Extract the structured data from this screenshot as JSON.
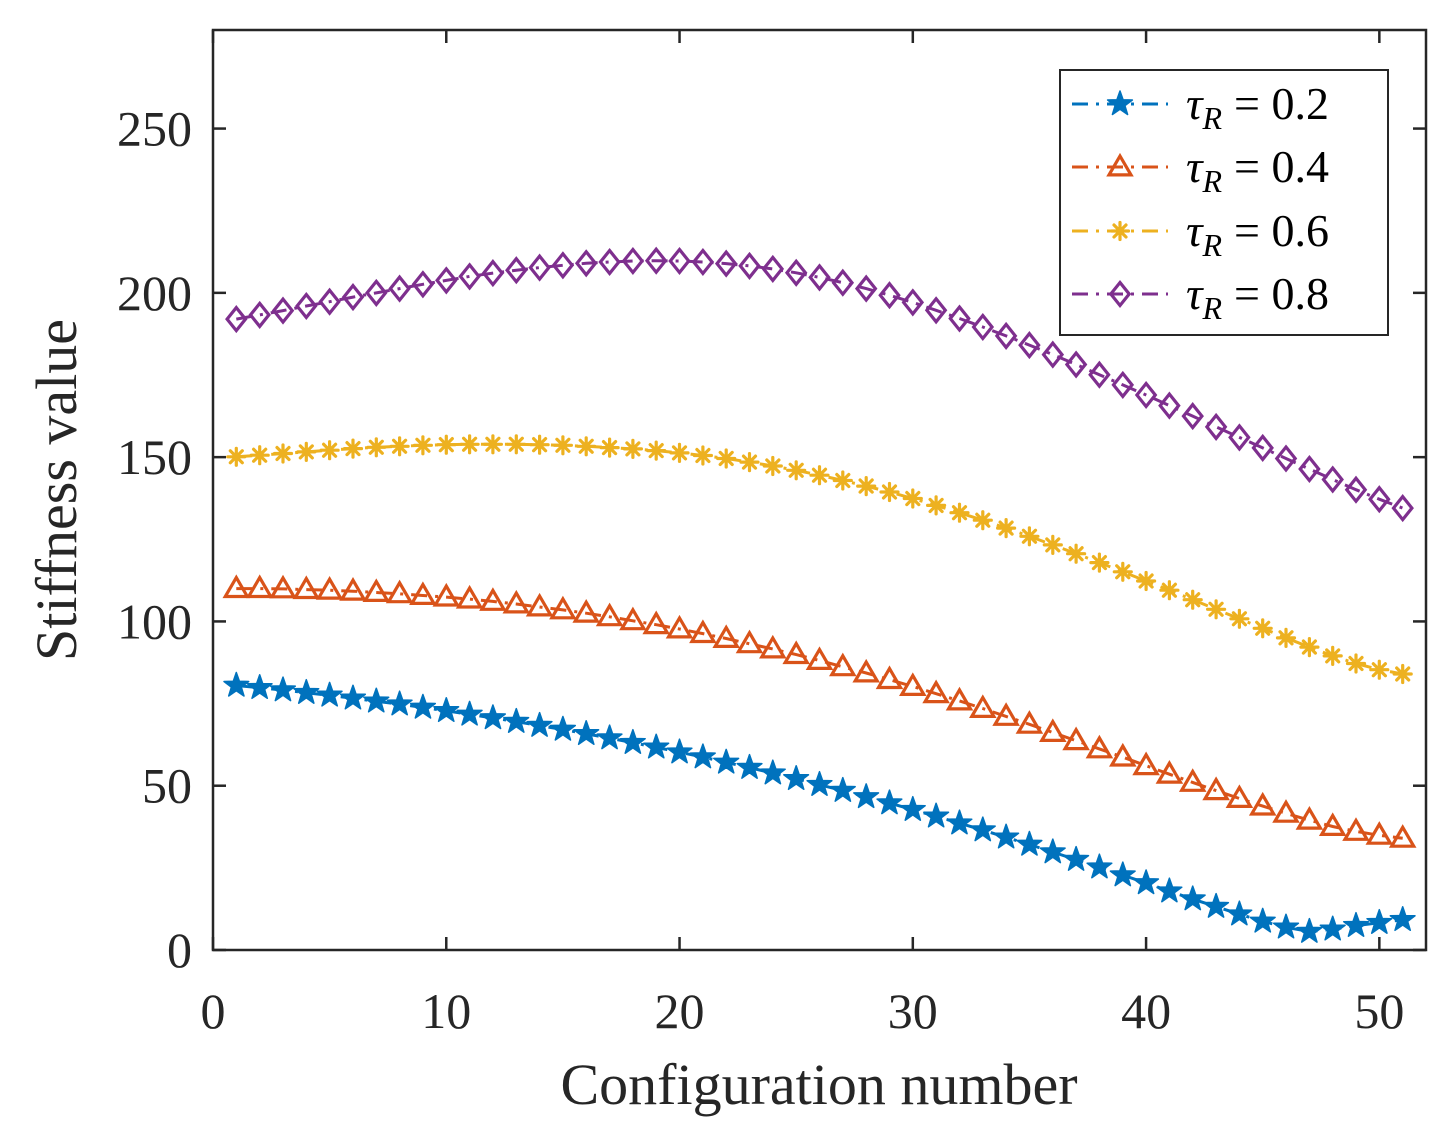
{
  "chart_data": {
    "type": "line",
    "xlabel": "Configuration number",
    "ylabel": "Stiffness value",
    "xlim": [
      0,
      52
    ],
    "ylim": [
      0,
      280
    ],
    "xticks": [
      0,
      10,
      20,
      30,
      40,
      50
    ],
    "yticks": [
      0,
      50,
      100,
      150,
      200,
      250
    ],
    "grid": false,
    "legend_position": "top-right",
    "x": [
      1,
      2,
      3,
      4,
      5,
      6,
      7,
      8,
      9,
      10,
      11,
      12,
      13,
      14,
      15,
      16,
      17,
      18,
      19,
      20,
      21,
      22,
      23,
      24,
      25,
      26,
      27,
      28,
      29,
      30,
      31,
      32,
      33,
      34,
      35,
      36,
      37,
      38,
      39,
      40,
      41,
      42,
      43,
      44,
      45,
      46,
      47,
      48,
      49,
      50,
      51
    ],
    "series": [
      {
        "name": "τ_R = 0.2",
        "legend_symbol": "τ",
        "legend_subscript": "R",
        "legend_value": "= 0.2",
        "color": "#0072BD",
        "marker": "star",
        "values": [
          80.5,
          79.8,
          79.1,
          78.3,
          77.5,
          76.6,
          75.7,
          74.8,
          73.8,
          72.8,
          71.7,
          70.6,
          69.5,
          68.3,
          67.1,
          65.8,
          64.5,
          63.1,
          61.7,
          60.2,
          58.7,
          57.1,
          55.5,
          53.8,
          52.1,
          50.3,
          48.5,
          46.6,
          44.7,
          42.7,
          40.7,
          38.6,
          36.5,
          34.3,
          32.1,
          29.8,
          27.5,
          25.2,
          22.8,
          20.4,
          17.9,
          15.5,
          13.2,
          10.9,
          8.7,
          6.9,
          5.6,
          6.3,
          7.4,
          8.3,
          9.2
        ]
      },
      {
        "name": "τ_R = 0.4",
        "legend_symbol": "τ",
        "legend_subscript": "R",
        "legend_value": "= 0.4",
        "color": "#D95319",
        "marker": "triangle",
        "values": [
          110.0,
          110.0,
          109.9,
          109.7,
          109.5,
          109.2,
          108.8,
          108.4,
          107.9,
          107.4,
          106.8,
          106.1,
          105.3,
          104.4,
          103.5,
          102.5,
          101.4,
          100.2,
          99.0,
          97.7,
          96.3,
          94.8,
          93.2,
          91.6,
          89.9,
          88.1,
          86.2,
          84.3,
          82.3,
          80.2,
          78.0,
          75.8,
          73.5,
          71.1,
          68.7,
          66.2,
          63.7,
          61.2,
          58.7,
          56.1,
          53.5,
          51.0,
          48.5,
          46.1,
          43.8,
          41.6,
          39.5,
          37.6,
          36.1,
          34.9,
          34.0
        ]
      },
      {
        "name": "τ_R = 0.6",
        "legend_symbol": "τ",
        "legend_subscript": "R",
        "legend_value": "= 0.6",
        "color": "#EDB120",
        "marker": "asterisk",
        "values": [
          150.1,
          150.6,
          151.1,
          151.6,
          152.1,
          152.6,
          153.0,
          153.3,
          153.6,
          153.8,
          153.9,
          153.9,
          153.9,
          153.8,
          153.6,
          153.3,
          152.9,
          152.5,
          152.0,
          151.3,
          150.5,
          149.6,
          148.5,
          147.3,
          146.0,
          144.5,
          142.9,
          141.2,
          139.4,
          137.4,
          135.3,
          133.1,
          130.8,
          128.4,
          125.9,
          123.3,
          120.6,
          117.9,
          115.1,
          112.3,
          109.5,
          106.6,
          103.7,
          100.8,
          97.9,
          95.0,
          92.2,
          89.5,
          87.2,
          85.3,
          84.0
        ]
      },
      {
        "name": "τ_R = 0.8",
        "legend_symbol": "τ",
        "legend_subscript": "R",
        "legend_value": "= 0.8",
        "color": "#7E2F8E",
        "marker": "diamond",
        "values": [
          192.0,
          193.3,
          194.6,
          196.0,
          197.3,
          198.7,
          200.0,
          201.3,
          202.6,
          203.8,
          205.0,
          206.0,
          206.9,
          207.7,
          208.4,
          209.0,
          209.4,
          209.7,
          209.8,
          209.7,
          209.4,
          208.9,
          208.2,
          207.3,
          206.1,
          204.7,
          203.1,
          201.3,
          199.3,
          197.1,
          194.7,
          192.2,
          189.6,
          186.9,
          184.1,
          181.2,
          178.2,
          175.1,
          172.0,
          168.9,
          165.7,
          162.5,
          159.2,
          156.0,
          152.8,
          149.6,
          146.4,
          143.2,
          140.1,
          137.2,
          134.5
        ]
      }
    ]
  }
}
